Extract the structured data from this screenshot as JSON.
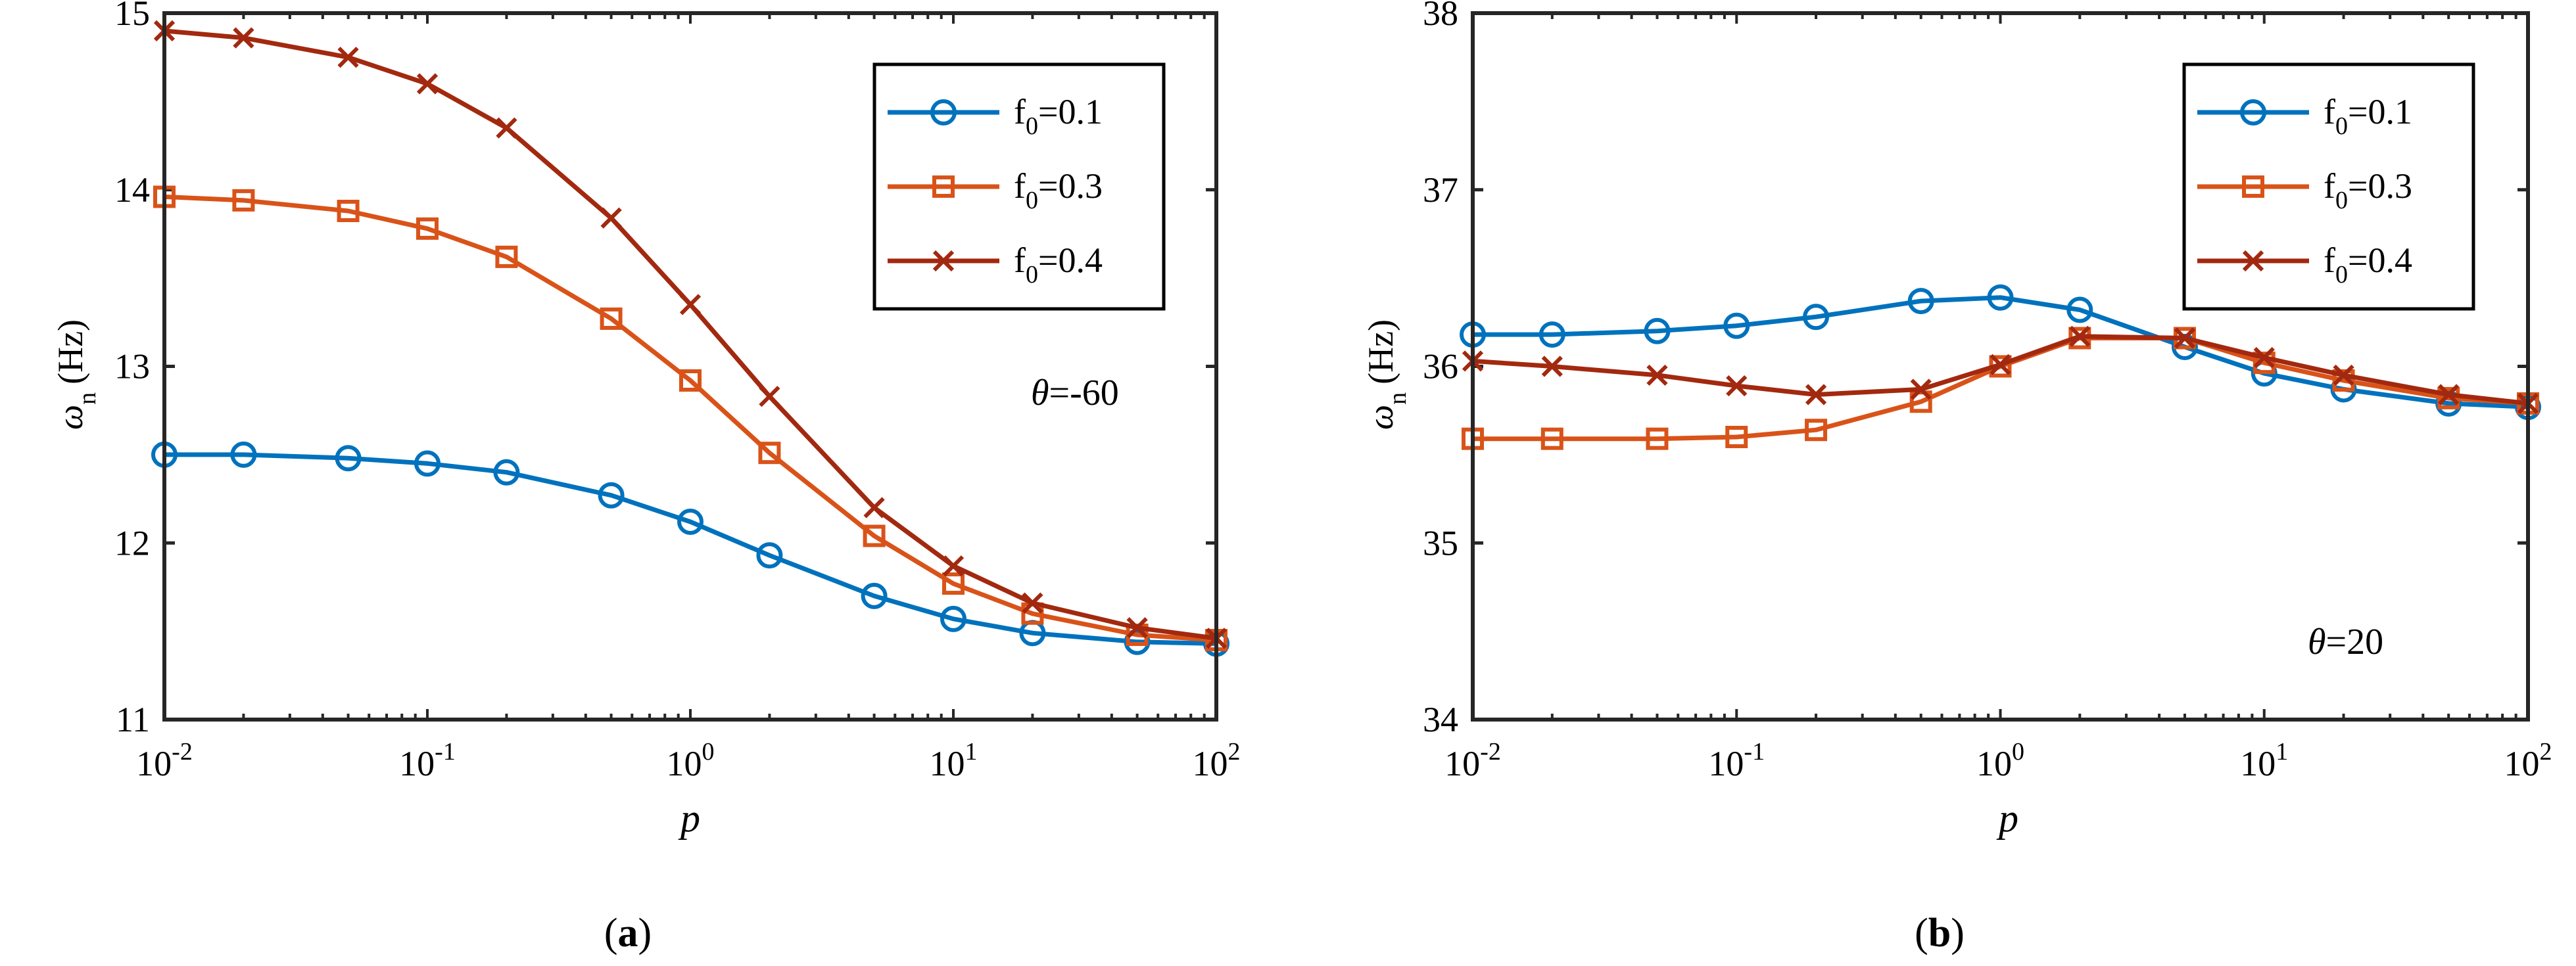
{
  "colors": {
    "s1": "#0072BD",
    "s2": "#D95319",
    "s3": "#A2290F"
  },
  "panels": [
    {
      "caption_letter": "a",
      "chart_data": {
        "type": "line",
        "x_scale": "log",
        "xlabel": "p",
        "ylabel_main": "ω",
        "ylabel_sub": "n",
        "ylabel_unit": "(Hz)",
        "xlim": [
          0.01,
          100
        ],
        "ylim": [
          11,
          15
        ],
        "yticks": [
          11,
          12,
          13,
          14,
          15
        ],
        "ytick_labels": [
          "11",
          "12",
          "13",
          "14",
          "15"
        ],
        "xticks": [
          0.01,
          0.1,
          1,
          10,
          100
        ],
        "xtick_exponents": [
          "-2",
          "-1",
          "0",
          "1",
          "2"
        ],
        "xtick_base": "10",
        "x": [
          0.01,
          0.02,
          0.05,
          0.1,
          0.2,
          0.5,
          1,
          2,
          5,
          10,
          20,
          50,
          100
        ],
        "series": [
          {
            "name": "f0=0.1",
            "legend_main": "f",
            "legend_sub": "0",
            "legend_tail": "=0.1",
            "marker": "circle",
            "color_key": "s1",
            "values": [
              12.5,
              12.5,
              12.48,
              12.45,
              12.4,
              12.27,
              12.12,
              11.93,
              11.7,
              11.57,
              11.49,
              11.44,
              11.43
            ]
          },
          {
            "name": "f0=0.3",
            "legend_main": "f",
            "legend_sub": "0",
            "legend_tail": "=0.3",
            "marker": "square",
            "color_key": "s2",
            "values": [
              13.96,
              13.94,
              13.88,
              13.78,
              13.62,
              13.27,
              12.92,
              12.51,
              12.04,
              11.77,
              11.6,
              11.48,
              11.45
            ]
          },
          {
            "name": "f0=0.4",
            "legend_main": "f",
            "legend_sub": "0",
            "legend_tail": "=0.4",
            "marker": "x",
            "color_key": "s3",
            "values": [
              14.9,
              14.86,
              14.75,
              14.6,
              14.35,
              13.84,
              13.35,
              12.83,
              12.2,
              11.87,
              11.66,
              11.52,
              11.46
            ]
          }
        ],
        "annotation": {
          "symbol": "θ",
          "text": "=-60"
        }
      }
    },
    {
      "caption_letter": "b",
      "chart_data": {
        "type": "line",
        "x_scale": "log",
        "xlabel": "p",
        "ylabel_main": "ω",
        "ylabel_sub": "n",
        "ylabel_unit": "(Hz)",
        "xlim": [
          0.01,
          100
        ],
        "ylim": [
          34,
          38
        ],
        "yticks": [
          34,
          35,
          36,
          37,
          38
        ],
        "ytick_labels": [
          "34",
          "35",
          "36",
          "37",
          "38"
        ],
        "xticks": [
          0.01,
          0.1,
          1,
          10,
          100
        ],
        "xtick_exponents": [
          "-2",
          "-1",
          "0",
          "1",
          "2"
        ],
        "xtick_base": "10",
        "x": [
          0.01,
          0.02,
          0.05,
          0.1,
          0.2,
          0.5,
          1,
          2,
          5,
          10,
          20,
          50,
          100
        ],
        "series": [
          {
            "name": "f0=0.1",
            "legend_main": "f",
            "legend_sub": "0",
            "legend_tail": "=0.1",
            "marker": "circle",
            "color_key": "s1",
            "values": [
              36.18,
              36.18,
              36.2,
              36.23,
              36.28,
              36.37,
              36.39,
              36.32,
              36.11,
              35.96,
              35.87,
              35.79,
              35.77
            ]
          },
          {
            "name": "f0=0.3",
            "legend_main": "f",
            "legend_sub": "0",
            "legend_tail": "=0.3",
            "marker": "square",
            "color_key": "s2",
            "values": [
              35.59,
              35.59,
              35.59,
              35.6,
              35.64,
              35.8,
              36.0,
              36.16,
              36.16,
              36.02,
              35.92,
              35.82,
              35.79
            ]
          },
          {
            "name": "f0=0.4",
            "legend_main": "f",
            "legend_sub": "0",
            "legend_tail": "=0.4",
            "marker": "x",
            "color_key": "s3",
            "values": [
              36.03,
              36.0,
              35.95,
              35.89,
              35.84,
              35.87,
              36.01,
              36.17,
              36.16,
              36.05,
              35.95,
              35.84,
              35.79
            ]
          }
        ],
        "annotation": {
          "symbol": "θ",
          "text": "=20"
        }
      }
    }
  ]
}
